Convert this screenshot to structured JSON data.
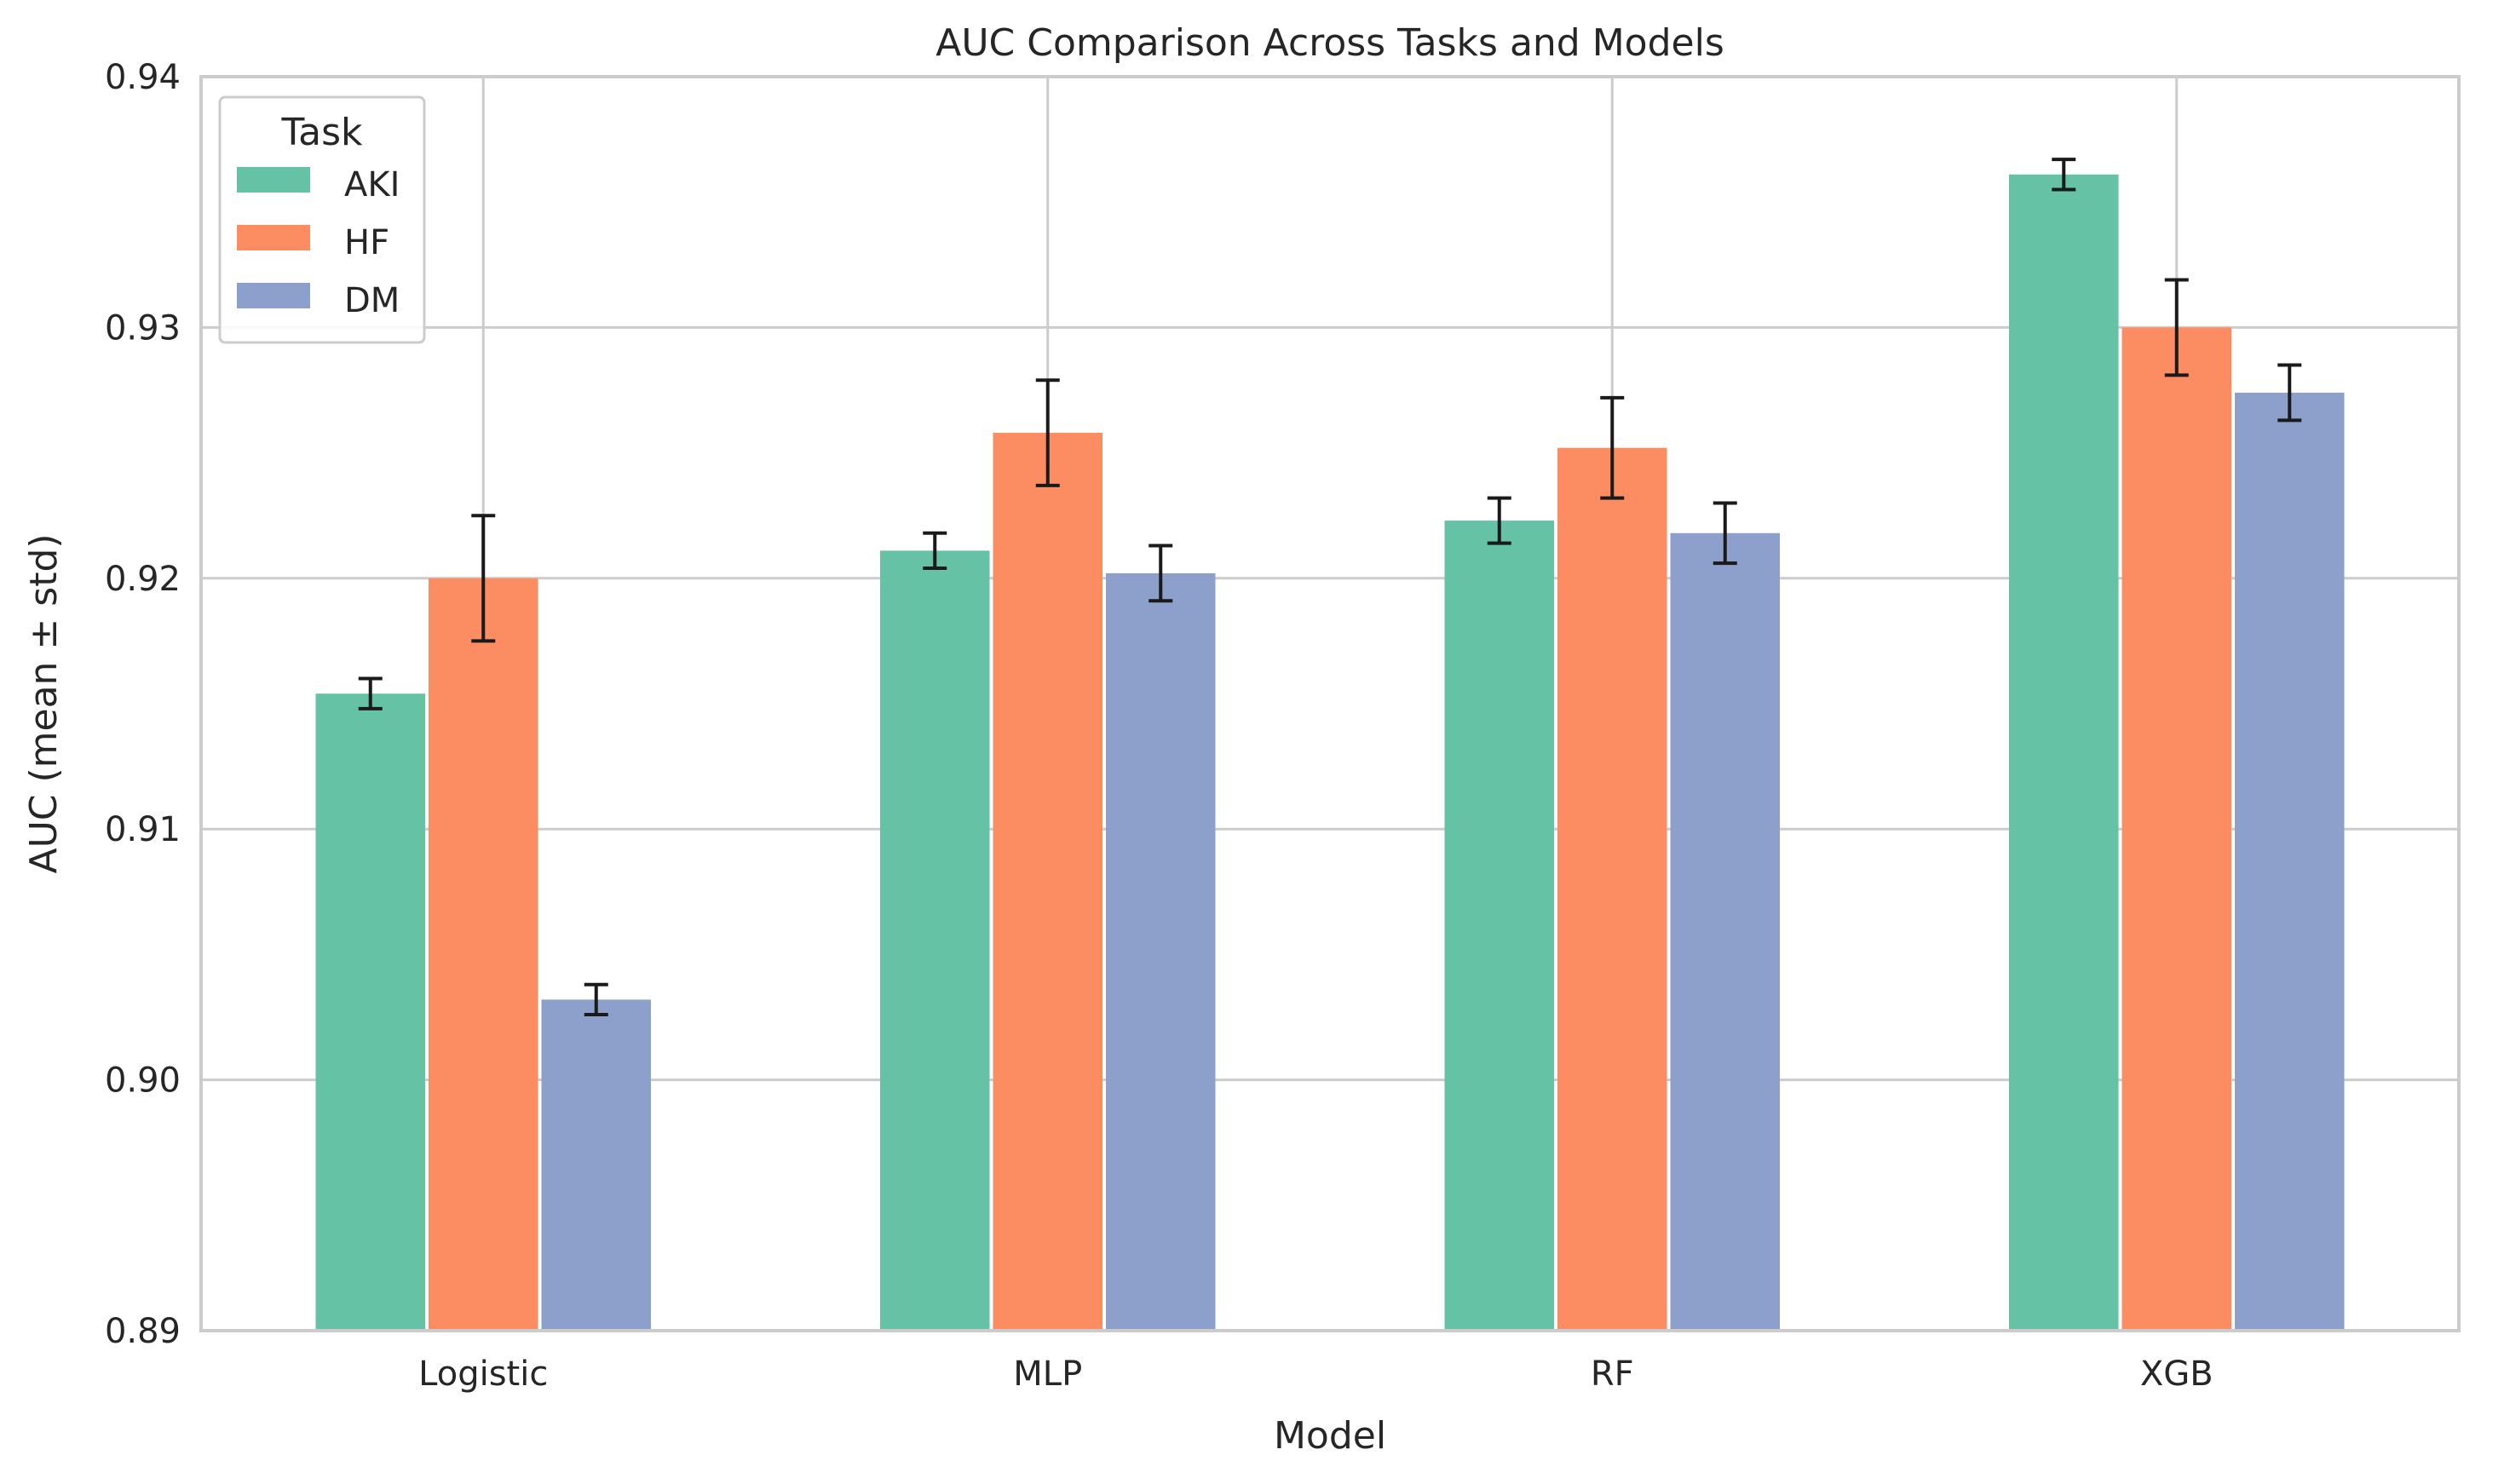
{
  "chart_data": {
    "type": "bar",
    "title": "AUC Comparison Across Tasks and Models",
    "xlabel": "Model",
    "ylabel": "AUC (mean ± std)",
    "categories": [
      "Logistic",
      "MLP",
      "RF",
      "XGB"
    ],
    "ylim": [
      0.89,
      0.94
    ],
    "yticks": [
      0.89,
      0.9,
      0.91,
      0.92,
      0.93,
      0.94
    ],
    "ytick_labels": [
      "0.89",
      "0.90",
      "0.91",
      "0.92",
      "0.93",
      "0.94"
    ],
    "grid": true,
    "legend": {
      "title": "Task",
      "position": "top-left"
    },
    "series": [
      {
        "name": "AKI",
        "color": "#66c2a5",
        "values": [
          0.9154,
          0.9211,
          0.9223,
          0.9361
        ],
        "std": [
          0.0006,
          0.0007,
          0.0009,
          0.0006
        ]
      },
      {
        "name": "HF",
        "color": "#fc8d62",
        "values": [
          0.92,
          0.9258,
          0.9252,
          0.93
        ],
        "std": [
          0.0025,
          0.0021,
          0.002,
          0.0019
        ]
      },
      {
        "name": "DM",
        "color": "#8da0cb",
        "values": [
          0.9032,
          0.9202,
          0.9218,
          0.9274
        ],
        "std": [
          0.0006,
          0.0011,
          0.0012,
          0.0011
        ]
      }
    ]
  }
}
